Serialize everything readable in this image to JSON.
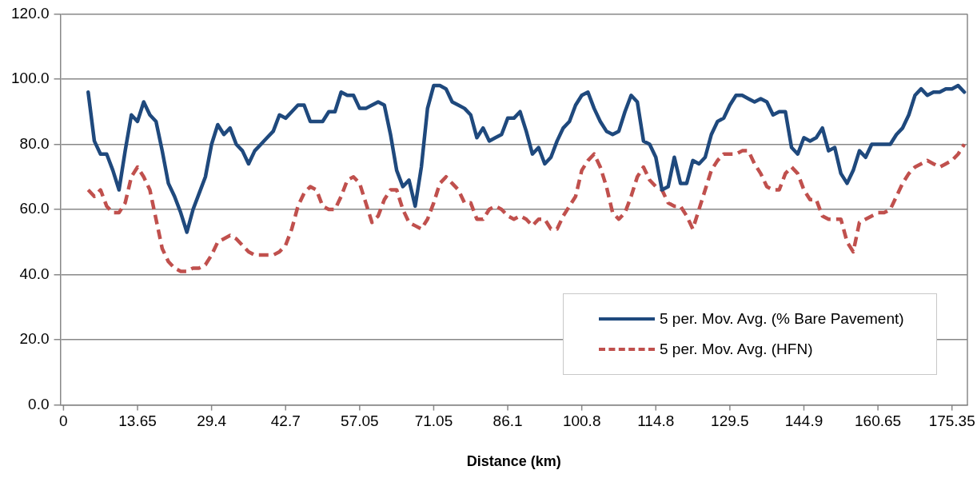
{
  "chart_data": {
    "type": "line",
    "xlabel": "Distance (km)",
    "categories": [
      "0",
      null,
      null,
      null,
      null,
      null,
      null,
      null,
      null,
      null,
      null,
      null,
      "13.65",
      null,
      null,
      null,
      null,
      null,
      null,
      null,
      null,
      null,
      null,
      null,
      "29.4",
      null,
      null,
      null,
      null,
      null,
      null,
      null,
      null,
      null,
      null,
      null,
      "42.7",
      null,
      null,
      null,
      null,
      null,
      null,
      null,
      null,
      null,
      null,
      null,
      "57.05",
      null,
      null,
      null,
      null,
      null,
      null,
      null,
      null,
      null,
      null,
      null,
      "71.05",
      null,
      null,
      null,
      null,
      null,
      null,
      null,
      null,
      null,
      null,
      null,
      "86.1",
      null,
      null,
      null,
      null,
      null,
      null,
      null,
      null,
      null,
      null,
      null,
      "100.8",
      null,
      null,
      null,
      null,
      null,
      null,
      null,
      null,
      null,
      null,
      null,
      "114.8",
      null,
      null,
      null,
      null,
      null,
      null,
      null,
      null,
      null,
      null,
      null,
      "129.5",
      null,
      null,
      null,
      null,
      null,
      null,
      null,
      null,
      null,
      null,
      null,
      "144.9",
      null,
      null,
      null,
      null,
      null,
      null,
      null,
      null,
      null,
      null,
      null,
      "160.65",
      null,
      null,
      null,
      null,
      null,
      null,
      null,
      null,
      null,
      null,
      null,
      "175.35",
      null,
      null
    ],
    "series": [
      {
        "name": "5 per. Mov. Avg. (% Bare Pavement)",
        "color": "#1f497d",
        "line_style": "solid",
        "values": [
          null,
          null,
          null,
          null,
          96,
          81,
          77,
          77,
          72,
          66,
          78,
          89,
          87,
          93,
          89,
          87,
          78,
          68,
          64,
          59,
          53,
          60,
          65,
          70,
          80,
          86,
          83,
          85,
          80,
          78,
          74,
          78,
          80,
          82,
          84,
          89,
          88,
          90,
          92,
          92,
          87,
          87,
          87,
          90,
          90,
          96,
          95,
          95,
          91,
          91,
          92,
          93,
          92,
          83,
          72,
          67,
          69,
          61,
          73,
          91,
          98,
          98,
          97,
          93,
          92,
          91,
          89,
          82,
          85,
          81,
          82,
          83,
          88,
          88,
          90,
          84,
          77,
          79,
          74,
          76,
          81,
          85,
          87,
          92,
          95,
          96,
          91,
          87,
          84,
          83,
          84,
          90,
          95,
          93,
          81,
          80,
          76,
          66,
          67,
          76,
          68,
          68,
          75,
          74,
          76,
          83,
          87,
          88,
          92,
          95,
          95,
          94,
          93,
          94,
          93,
          89,
          90,
          90,
          79,
          77,
          82,
          81,
          82,
          85,
          78,
          79,
          71,
          68,
          72,
          78,
          76,
          80,
          80,
          80,
          80,
          83,
          85,
          89,
          95,
          97,
          95,
          96,
          96,
          97,
          97,
          98,
          96
        ]
      },
      {
        "name": "5 per. Mov. Avg. (HFN)",
        "color": "#c0504d",
        "line_style": "dashed",
        "values": [
          null,
          null,
          null,
          null,
          66,
          64,
          66,
          61,
          59,
          59,
          62,
          70,
          73,
          70,
          66,
          57,
          48,
          44,
          42,
          41,
          41,
          42,
          42,
          43,
          46,
          50,
          51,
          52,
          51,
          49,
          47,
          46,
          46,
          46,
          46,
          47,
          49,
          54,
          61,
          65,
          67,
          66,
          61,
          60,
          60,
          64,
          69,
          70,
          68,
          62,
          56,
          58,
          63,
          66,
          66,
          60,
          56,
          55,
          54,
          57,
          62,
          68,
          70,
          68,
          66,
          62,
          62,
          57,
          57,
          60,
          61,
          60,
          58,
          57,
          58,
          57,
          55,
          57,
          57,
          54,
          54,
          58,
          61,
          64,
          72,
          75,
          77,
          73,
          67,
          59,
          57,
          59,
          64,
          70,
          73,
          69,
          67,
          66,
          62,
          61,
          61,
          58,
          54,
          60,
          66,
          72,
          75,
          77,
          77,
          77,
          78,
          78,
          74,
          71,
          67,
          66,
          66,
          71,
          73,
          71,
          66,
          63,
          63,
          58,
          57,
          57,
          57,
          50,
          47,
          56,
          57,
          58,
          59,
          59,
          60,
          64,
          68,
          71,
          73,
          74,
          75,
          74,
          73,
          74,
          75,
          77,
          80
        ]
      }
    ],
    "ylim": [
      0,
      120
    ],
    "yticks": [
      {
        "value": 0,
        "label": "0.0"
      },
      {
        "value": 20,
        "label": "20.0"
      },
      {
        "value": 40,
        "label": "40.0"
      },
      {
        "value": 60,
        "label": "60.0"
      },
      {
        "value": 80,
        "label": "80.0"
      },
      {
        "value": 100,
        "label": "100.0"
      },
      {
        "value": 120,
        "label": "120.0"
      }
    ],
    "grid": "y",
    "legend": "bottom right",
    "marker": "none"
  }
}
